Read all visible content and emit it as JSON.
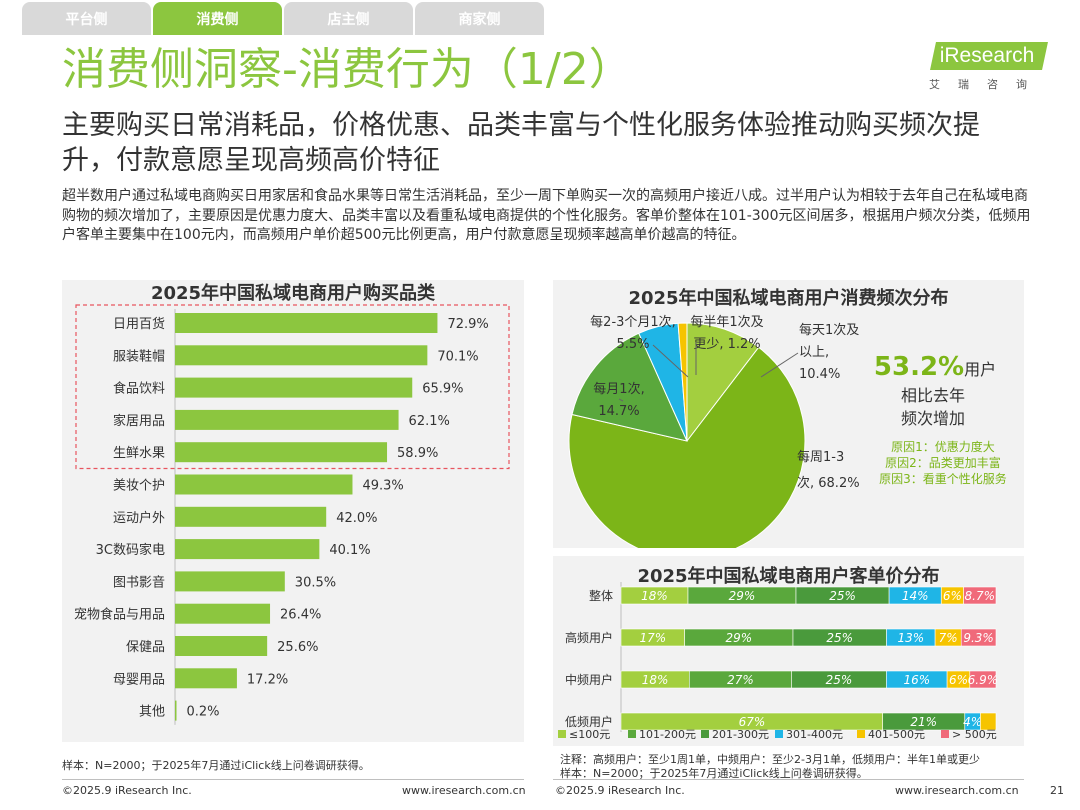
{
  "tabs": [
    {
      "label": "平台侧",
      "active": false
    },
    {
      "label": "消费侧",
      "active": true
    },
    {
      "label": "店主侧",
      "active": false
    },
    {
      "label": "商家侧",
      "active": false
    }
  ],
  "logo": {
    "brand": "iResearch",
    "cn": "艾瑞咨询"
  },
  "header": {
    "title": "消费侧洞察-消费行为（1/2）",
    "subtitle": "主要购买日常消耗品，价格优惠、品类丰富与个性化服务体验推动购买频次提升，付款意愿呈现高频高价特征",
    "paragraph": "超半数用户通过私域电商购买日用家居和食品水果等日常生活消耗品，至少一周下单购买一次的高频用户接近八成。过半用户认为相较于去年自己在私域电商购物的频次增加了，主要原因是优惠力度大、品类丰富以及看重私域电商提供的个性化服务。客单价整体在101-300元区间居多，根据用户频次分类，低频用户客单主要集中在100元内，而高频用户单价超500元比例更高，用户付款意愿呈现频率越高单价越高的特征。"
  },
  "chart_data": [
    {
      "type": "bar",
      "orientation": "horizontal",
      "title": "2025年中国私域电商用户购买品类",
      "categories": [
        "日用百货",
        "服装鞋帽",
        "食品饮料",
        "家居用品",
        "生鲜水果",
        "美妆个护",
        "运动户外",
        "3C数码家电",
        "图书影音",
        "宠物食品与用品",
        "保健品",
        "母婴用品",
        "其他"
      ],
      "values": [
        72.9,
        70.1,
        65.9,
        62.1,
        58.9,
        49.3,
        42.0,
        40.1,
        30.5,
        26.4,
        25.6,
        17.2,
        0.2
      ],
      "value_labels": [
        "72.9%",
        "70.1%",
        "65.9%",
        "62.1%",
        "58.9%",
        "49.3%",
        "42.0%",
        "40.1%",
        "30.5%",
        "26.4%",
        "25.6%",
        "17.2%",
        "0.2%"
      ],
      "unit": "%",
      "highlight_top": 5,
      "color": "#8cc63f"
    },
    {
      "type": "pie",
      "title": "2025年中国私域电商用户消费频次分布",
      "slices": [
        {
          "name": "每天1次及以上",
          "value": 10.4,
          "label_lines": [
            "每天1次及",
            "以上,",
            "10.4%"
          ],
          "color": "#a3cf3f"
        },
        {
          "name": "每周1-3次",
          "value": 68.2,
          "label_lines": [
            "每周1-3",
            "次, 68.2%"
          ],
          "color": "#7cb518"
        },
        {
          "name": "每月1次",
          "value": 14.7,
          "label_lines": [
            "每月1次,",
            "14.7%"
          ],
          "color": "#5aa83c"
        },
        {
          "name": "每2-3个月1次",
          "value": 5.5,
          "label_lines": [
            "每2-3个月1次,",
            "5.5%"
          ],
          "color": "#1fb5e6"
        },
        {
          "name": "每半年1次及更少",
          "value": 1.2,
          "label_lines": [
            "每半年1次及",
            "更少, 1.2%"
          ],
          "color": "#f6c400"
        }
      ],
      "highlight": {
        "value": "53.2%",
        "value_suffix": "用户",
        "line2": "相比去年",
        "line3": "频次增加"
      },
      "reasons": [
        "原因1：优惠力度大",
        "原因2：品类更加丰富",
        "原因3：看重个性化服务"
      ],
      "highlight_color": "#7cb518"
    },
    {
      "type": "bar",
      "orientation": "horizontal",
      "stacked": true,
      "percent": true,
      "title": "2025年中国私域电商用户客单价分布",
      "categories": [
        "整体",
        "高频用户",
        "中频用户",
        "低频用户"
      ],
      "series": [
        {
          "name": "≤100元",
          "color": "#a3cf3f",
          "values": [
            18,
            17,
            18,
            67
          ],
          "labels": [
            "18%",
            "17%",
            "18%",
            "67%"
          ]
        },
        {
          "name": "101-200元",
          "color": "#5aa83c",
          "values": [
            29,
            29,
            27,
            0
          ],
          "labels": [
            "29%",
            "29%",
            "27%",
            ""
          ]
        },
        {
          "name": "201-300元",
          "color": "#4a9a3c",
          "values": [
            25,
            25,
            25,
            21
          ],
          "labels": [
            "25%",
            "25%",
            "25%",
            "21%"
          ]
        },
        {
          "name": "301-400元",
          "color": "#1fb5e6",
          "values": [
            14,
            13,
            16,
            4
          ],
          "labels": [
            "14%",
            "13%",
            "16%",
            "4%"
          ]
        },
        {
          "name": "401-500元",
          "color": "#f6c400",
          "values": [
            6,
            7,
            6,
            4
          ],
          "labels": [
            "6%",
            "7%",
            "6%",
            ""
          ]
        },
        {
          "name": "> 500元",
          "color": "#f06a7a",
          "values": [
            8.7,
            9.3,
            6.9,
            0
          ],
          "labels": [
            "8.7%",
            "9.3%",
            "6.9%",
            ""
          ]
        }
      ]
    }
  ],
  "footnotes": {
    "left_sample": "样本：N=2000；于2025年7月通过iClick线上问卷调研获得。",
    "right_note": "注释：高频用户：至少1周1单，中频用户：至少2-3月1单，低频用户：半年1单或更少",
    "right_sample": "样本：N=2000；于2025年7月通过iClick线上问卷调研获得。"
  },
  "footer": {
    "left_copy": "©2025.9 iResearch Inc.",
    "left_url": "www.iresearch.com.cn",
    "right_copy": "©2025.9 iResearch Inc.",
    "right_url": "www.iresearch.com.cn",
    "page_number": "21"
  }
}
